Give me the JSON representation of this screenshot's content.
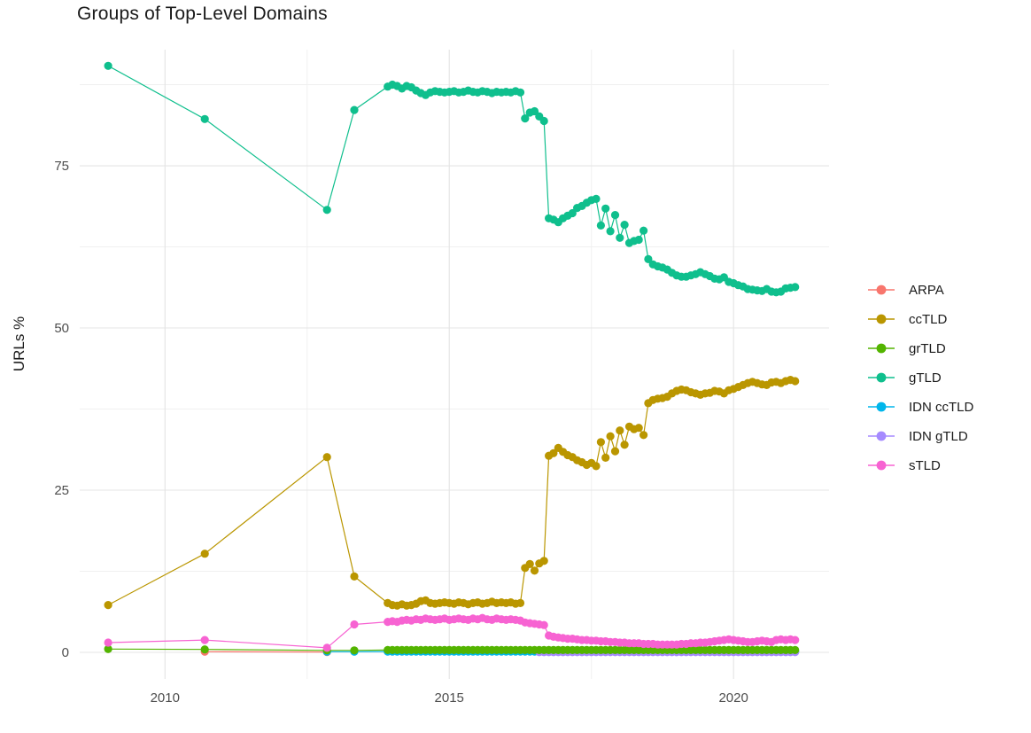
{
  "title": "Groups of Top-Level Domains",
  "ylabel": "URLs %",
  "chart_data": {
    "type": "line",
    "title": "Groups of Top-Level Domains",
    "xlabel": "",
    "ylabel": "URLs %",
    "grid": true,
    "legend_position": "right",
    "x_ticks": [
      2010,
      2015,
      2020
    ],
    "x_minor_ticks": [
      2012.5,
      2017.5
    ],
    "y_ticks": [
      0,
      25,
      50,
      75
    ],
    "y_minor_ticks": [
      12.5,
      37.5,
      62.5,
      87.5
    ],
    "x_range": [
      2008.5,
      2021.68
    ],
    "y_range": [
      -4.1,
      92.9
    ],
    "x_dense": [
      2013.917,
      2014,
      2014.083,
      2014.167,
      2014.25,
      2014.333,
      2014.417,
      2014.5,
      2014.583,
      2014.667,
      2014.75,
      2014.833,
      2014.917,
      2015,
      2015.083,
      2015.167,
      2015.25,
      2015.333,
      2015.417,
      2015.5,
      2015.583,
      2015.667,
      2015.75,
      2015.833,
      2015.917,
      2016,
      2016.083,
      2016.167,
      2016.25,
      2016.333,
      2016.417,
      2016.5,
      2016.583,
      2016.667,
      2016.75,
      2016.833,
      2016.917,
      2017,
      2017.083,
      2017.167,
      2017.25,
      2017.333,
      2017.417,
      2017.5,
      2017.583,
      2017.667,
      2017.75,
      2017.833,
      2017.917,
      2018,
      2018.083,
      2018.167,
      2018.25,
      2018.333,
      2018.417,
      2018.5,
      2018.583,
      2018.667,
      2018.75,
      2018.833,
      2018.917,
      2019,
      2019.083,
      2019.167,
      2019.25,
      2019.333,
      2019.417,
      2019.5,
      2019.583,
      2019.667,
      2019.75,
      2019.833,
      2019.917,
      2020,
      2020.083,
      2020.167,
      2020.25,
      2020.333,
      2020.417,
      2020.5,
      2020.583,
      2020.667,
      2020.75,
      2020.833,
      2020.917,
      2021,
      2021.083
    ],
    "series": [
      {
        "name": "ARPA",
        "color": "#F8766D",
        "z": 1,
        "x": [
          2010.7,
          2012.85
        ],
        "y": [
          0.1,
          0.05
        ]
      },
      {
        "name": "ccTLD",
        "color": "#BA9600",
        "z": 2,
        "pre_x": [
          2009.0,
          2010.7,
          2012.85,
          2013.33
        ],
        "pre_y": [
          7.3,
          15.2,
          30.1,
          11.7
        ],
        "dense_from": 0,
        "y_dense": [
          7.6,
          7.3,
          7.2,
          7.4,
          7.2,
          7.3,
          7.5,
          7.9,
          8.0,
          7.6,
          7.5,
          7.6,
          7.7,
          7.6,
          7.5,
          7.7,
          7.6,
          7.4,
          7.6,
          7.7,
          7.5,
          7.6,
          7.8,
          7.6,
          7.7,
          7.6,
          7.7,
          7.5,
          7.6,
          13.0,
          13.6,
          12.6,
          13.7,
          14.1,
          30.3,
          30.7,
          31.5,
          30.9,
          30.4,
          30.1,
          29.6,
          29.3,
          28.9,
          29.2,
          28.7,
          32.4,
          30.0,
          33.3,
          31.0,
          34.2,
          32.0,
          34.8,
          34.4,
          34.6,
          33.5,
          38.4,
          38.9,
          39.1,
          39.2,
          39.4,
          39.9,
          40.3,
          40.5,
          40.4,
          40.1,
          39.9,
          39.7,
          39.9,
          40.0,
          40.3,
          40.2,
          39.9,
          40.4,
          40.6,
          40.9,
          41.2,
          41.5,
          41.7,
          41.5,
          41.3,
          41.2,
          41.6,
          41.7,
          41.5,
          41.8,
          42.0,
          41.8
        ]
      },
      {
        "name": "grTLD",
        "color": "#53B400",
        "z": 5,
        "pre_x": [
          2009.0,
          2010.7,
          2012.85,
          2013.33
        ],
        "pre_y": [
          0.5,
          0.45,
          0.3,
          0.3
        ],
        "dense_from": 0,
        "y_const": 0.35
      },
      {
        "name": "gTLD",
        "color": "#0FBF8D",
        "z": 6,
        "pre_x": [
          2009.0,
          2010.7,
          2012.85,
          2013.33
        ],
        "pre_y": [
          90.4,
          82.2,
          68.2,
          83.6
        ],
        "dense_from": 0,
        "y_dense": [
          87.2,
          87.5,
          87.3,
          86.9,
          87.3,
          87.1,
          86.6,
          86.2,
          85.9,
          86.3,
          86.5,
          86.4,
          86.3,
          86.4,
          86.5,
          86.3,
          86.4,
          86.6,
          86.4,
          86.3,
          86.5,
          86.4,
          86.2,
          86.4,
          86.3,
          86.4,
          86.3,
          86.5,
          86.3,
          82.3,
          83.2,
          83.4,
          82.6,
          81.9,
          66.9,
          66.7,
          66.3,
          66.9,
          67.3,
          67.7,
          68.5,
          68.8,
          69.3,
          69.7,
          69.9,
          65.8,
          68.4,
          64.9,
          67.4,
          63.9,
          65.9,
          63.1,
          63.4,
          63.6,
          65.0,
          60.6,
          59.8,
          59.5,
          59.3,
          59.0,
          58.5,
          58.1,
          57.9,
          57.9,
          58.1,
          58.3,
          58.6,
          58.3,
          58.0,
          57.6,
          57.5,
          57.8,
          57.1,
          56.9,
          56.6,
          56.4,
          56.0,
          55.9,
          55.8,
          55.7,
          56.0,
          55.6,
          55.5,
          55.6,
          56.1,
          56.2,
          56.3
        ]
      },
      {
        "name": "IDN ccTLD",
        "color": "#00B6EB",
        "z": 3,
        "pre_x": [
          2012.85,
          2013.33
        ],
        "pre_y": [
          0.1,
          0.1
        ],
        "dense_from": 0,
        "y_const": 0.12
      },
      {
        "name": "IDN gTLD",
        "color": "#A58AFF",
        "z": 4,
        "dense_from": 32,
        "y_const": 0.02
      },
      {
        "name": "sTLD",
        "color": "#F763D2",
        "z": 7,
        "pre_x": [
          2009.0,
          2010.7,
          2012.85,
          2013.33
        ],
        "pre_y": [
          1.5,
          1.9,
          0.7,
          4.3
        ],
        "dense_from": 0,
        "y_dense": [
          4.7,
          4.8,
          4.7,
          4.9,
          5.0,
          4.9,
          5.1,
          5.0,
          5.2,
          5.1,
          5.0,
          5.1,
          5.2,
          5.0,
          5.1,
          5.2,
          5.1,
          5.0,
          5.2,
          5.1,
          5.3,
          5.1,
          5.0,
          5.2,
          5.1,
          5.0,
          5.1,
          5.0,
          4.9,
          4.6,
          4.5,
          4.4,
          4.3,
          4.2,
          2.6,
          2.4,
          2.3,
          2.2,
          2.1,
          2.1,
          2.0,
          1.9,
          1.9,
          1.8,
          1.8,
          1.7,
          1.7,
          1.6,
          1.6,
          1.5,
          1.5,
          1.4,
          1.4,
          1.4,
          1.3,
          1.3,
          1.3,
          1.2,
          1.2,
          1.2,
          1.2,
          1.2,
          1.3,
          1.3,
          1.4,
          1.4,
          1.5,
          1.5,
          1.6,
          1.7,
          1.8,
          1.9,
          2.0,
          1.9,
          1.8,
          1.7,
          1.6,
          1.6,
          1.7,
          1.8,
          1.7,
          1.6,
          1.9,
          2.0,
          1.9,
          2.0,
          1.9
        ]
      }
    ]
  }
}
